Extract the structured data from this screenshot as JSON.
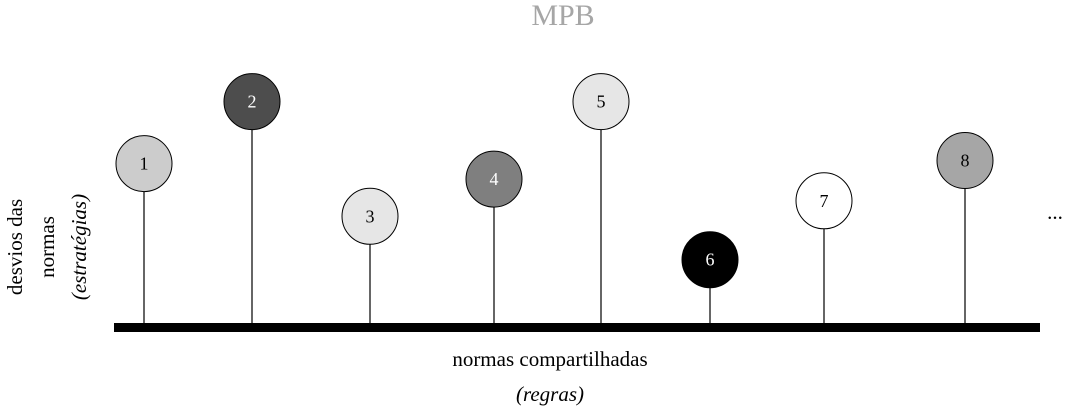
{
  "title": "MPB",
  "x_axis": {
    "label": "normas compartilhadas",
    "sublabel": "(regras)"
  },
  "y_axis": {
    "line1": "desvios das",
    "line2": "normas",
    "sublabel": "(estratégias)"
  },
  "continuation": "...",
  "colors": {
    "baseline": "#000000",
    "stem": "#000000",
    "outline": "#000000",
    "title": "#a6a6a6"
  },
  "pins": [
    {
      "label": "1",
      "level": 0.54,
      "fill": "#cccccc",
      "text_color": "#000000"
    },
    {
      "label": "2",
      "level": 0.74,
      "fill": "#4d4d4d",
      "text_color": "#ffffff"
    },
    {
      "label": "3",
      "level": 0.37,
      "fill": "#e6e6e6",
      "text_color": "#000000"
    },
    {
      "label": "4",
      "level": 0.49,
      "fill": "#7f7f7f",
      "text_color": "#ffffff"
    },
    {
      "label": "5",
      "level": 0.74,
      "fill": "#e6e6e6",
      "text_color": "#000000"
    },
    {
      "label": "6",
      "level": 0.23,
      "fill": "#000000",
      "text_color": "#ffffff"
    },
    {
      "label": "7",
      "level": 0.42,
      "fill": "#ffffff",
      "text_color": "#000000"
    },
    {
      "label": "8",
      "level": 0.55,
      "fill": "#a6a6a6",
      "text_color": "#000000"
    }
  ]
}
